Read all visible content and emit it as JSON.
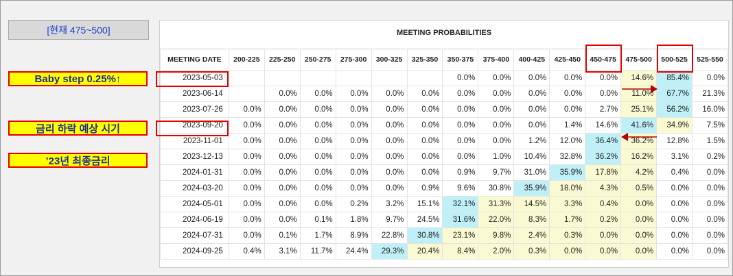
{
  "current_rate_label": "[현재 475~500]",
  "notes": {
    "baby_step": "Baby step 0.25%↑",
    "rate_cut_timing": "금리 하락 예상 시기",
    "final_rate_2023": "’23년 최종금리"
  },
  "table": {
    "title": "MEETING PROBABILITIES",
    "date_header": "MEETING DATE",
    "columns": [
      "200-225",
      "225-250",
      "250-275",
      "275-300",
      "300-325",
      "325-350",
      "350-375",
      "375-400",
      "400-425",
      "425-450",
      "450-475",
      "475-500",
      "500-525",
      "525-550"
    ],
    "rows": [
      {
        "date": "2023-05-03",
        "values": [
          "",
          "",
          "",
          "",
          "",
          "",
          "0.0%",
          "0.0%",
          "0.0%",
          "0.0%",
          "0.0%",
          "14.6%",
          "85.4%",
          "0.0%"
        ]
      },
      {
        "date": "2023-06-14",
        "values": [
          "",
          "0.0%",
          "0.0%",
          "0.0%",
          "0.0%",
          "0.0%",
          "0.0%",
          "0.0%",
          "0.0%",
          "0.0%",
          "0.0%",
          "11.0%",
          "67.7%",
          "21.3%"
        ]
      },
      {
        "date": "2023-07-26",
        "values": [
          "0.0%",
          "0.0%",
          "0.0%",
          "0.0%",
          "0.0%",
          "0.0%",
          "0.0%",
          "0.0%",
          "0.0%",
          "0.0%",
          "2.7%",
          "25.1%",
          "56.2%",
          "16.0%"
        ]
      },
      {
        "date": "2023-09-20",
        "values": [
          "0.0%",
          "0.0%",
          "0.0%",
          "0.0%",
          "0.0%",
          "0.0%",
          "0.0%",
          "0.0%",
          "0.0%",
          "1.4%",
          "14.6%",
          "41.6%",
          "34.9%",
          "7.5%"
        ]
      },
      {
        "date": "2023-11-01",
        "values": [
          "0.0%",
          "0.0%",
          "0.0%",
          "0.0%",
          "0.0%",
          "0.0%",
          "0.0%",
          "0.0%",
          "1.2%",
          "12.0%",
          "36.4%",
          "36.2%",
          "12.8%",
          "1.5%"
        ]
      },
      {
        "date": "2023-12-13",
        "values": [
          "0.0%",
          "0.0%",
          "0.0%",
          "0.0%",
          "0.0%",
          "0.0%",
          "0.0%",
          "1.0%",
          "10.4%",
          "32.8%",
          "36.2%",
          "16.2%",
          "3.1%",
          "0.2%"
        ]
      },
      {
        "date": "2024-01-31",
        "values": [
          "0.0%",
          "0.0%",
          "0.0%",
          "0.0%",
          "0.0%",
          "0.0%",
          "0.9%",
          "9.7%",
          "31.0%",
          "35.9%",
          "17.8%",
          "4.2%",
          "0.4%",
          "0.0%"
        ]
      },
      {
        "date": "2024-03-20",
        "values": [
          "0.0%",
          "0.0%",
          "0.0%",
          "0.0%",
          "0.0%",
          "0.9%",
          "9.6%",
          "30.8%",
          "35.9%",
          "18.0%",
          "4.3%",
          "0.5%",
          "0.0%",
          "0.0%"
        ]
      },
      {
        "date": "2024-05-01",
        "values": [
          "0.0%",
          "0.0%",
          "0.0%",
          "0.2%",
          "3.2%",
          "15.1%",
          "32.1%",
          "31.3%",
          "14.5%",
          "3.3%",
          "0.4%",
          "0.0%",
          "0.0%",
          "0.0%"
        ]
      },
      {
        "date": "2024-06-19",
        "values": [
          "0.0%",
          "0.0%",
          "0.1%",
          "1.8%",
          "9.7%",
          "24.5%",
          "31.6%",
          "22.0%",
          "8.3%",
          "1.7%",
          "0.2%",
          "0.0%",
          "0.0%",
          "0.0%"
        ]
      },
      {
        "date": "2024-07-31",
        "values": [
          "0.0%",
          "0.1%",
          "1.7%",
          "8.9%",
          "22.8%",
          "30.8%",
          "23.1%",
          "9.8%",
          "2.4%",
          "0.3%",
          "0.0%",
          "0.0%",
          "0.0%",
          "0.0%"
        ]
      },
      {
        "date": "2024-09-25",
        "values": [
          "0.4%",
          "3.1%",
          "11.7%",
          "24.4%",
          "29.3%",
          "20.4%",
          "8.4%",
          "2.0%",
          "0.3%",
          "0.0%",
          "0.0%",
          "0.0%",
          "0.0%",
          "0.0%"
        ]
      }
    ],
    "highlights": {
      "blue": [
        [
          0,
          12
        ],
        [
          1,
          12
        ],
        [
          2,
          12
        ],
        [
          3,
          11
        ],
        [
          4,
          10
        ],
        [
          5,
          10
        ],
        [
          6,
          9
        ],
        [
          7,
          8
        ],
        [
          8,
          6
        ],
        [
          9,
          6
        ],
        [
          10,
          5
        ],
        [
          11,
          4
        ]
      ],
      "yellow": [
        [
          0,
          11
        ],
        [
          1,
          11
        ],
        [
          2,
          11
        ],
        [
          3,
          12
        ],
        [
          4,
          11
        ],
        [
          5,
          11
        ],
        [
          6,
          10
        ],
        [
          6,
          11
        ],
        [
          7,
          9
        ],
        [
          7,
          10
        ],
        [
          7,
          11
        ],
        [
          8,
          7
        ],
        [
          8,
          8
        ],
        [
          8,
          9
        ],
        [
          8,
          10
        ],
        [
          8,
          11
        ],
        [
          9,
          7
        ],
        [
          9,
          8
        ],
        [
          9,
          9
        ],
        [
          9,
          10
        ],
        [
          9,
          11
        ],
        [
          10,
          6
        ],
        [
          10,
          7
        ],
        [
          10,
          8
        ],
        [
          10,
          9
        ],
        [
          10,
          10
        ],
        [
          10,
          11
        ],
        [
          11,
          5
        ],
        [
          11,
          6
        ],
        [
          11,
          7
        ],
        [
          11,
          8
        ],
        [
          11,
          9
        ],
        [
          11,
          10
        ],
        [
          11,
          11
        ]
      ]
    }
  },
  "colors": {
    "accent_red": "#e30000",
    "note_yellow": "#ffff00",
    "highlight_blue": "#bff0f8",
    "highlight_yellow": "#fafad2"
  }
}
